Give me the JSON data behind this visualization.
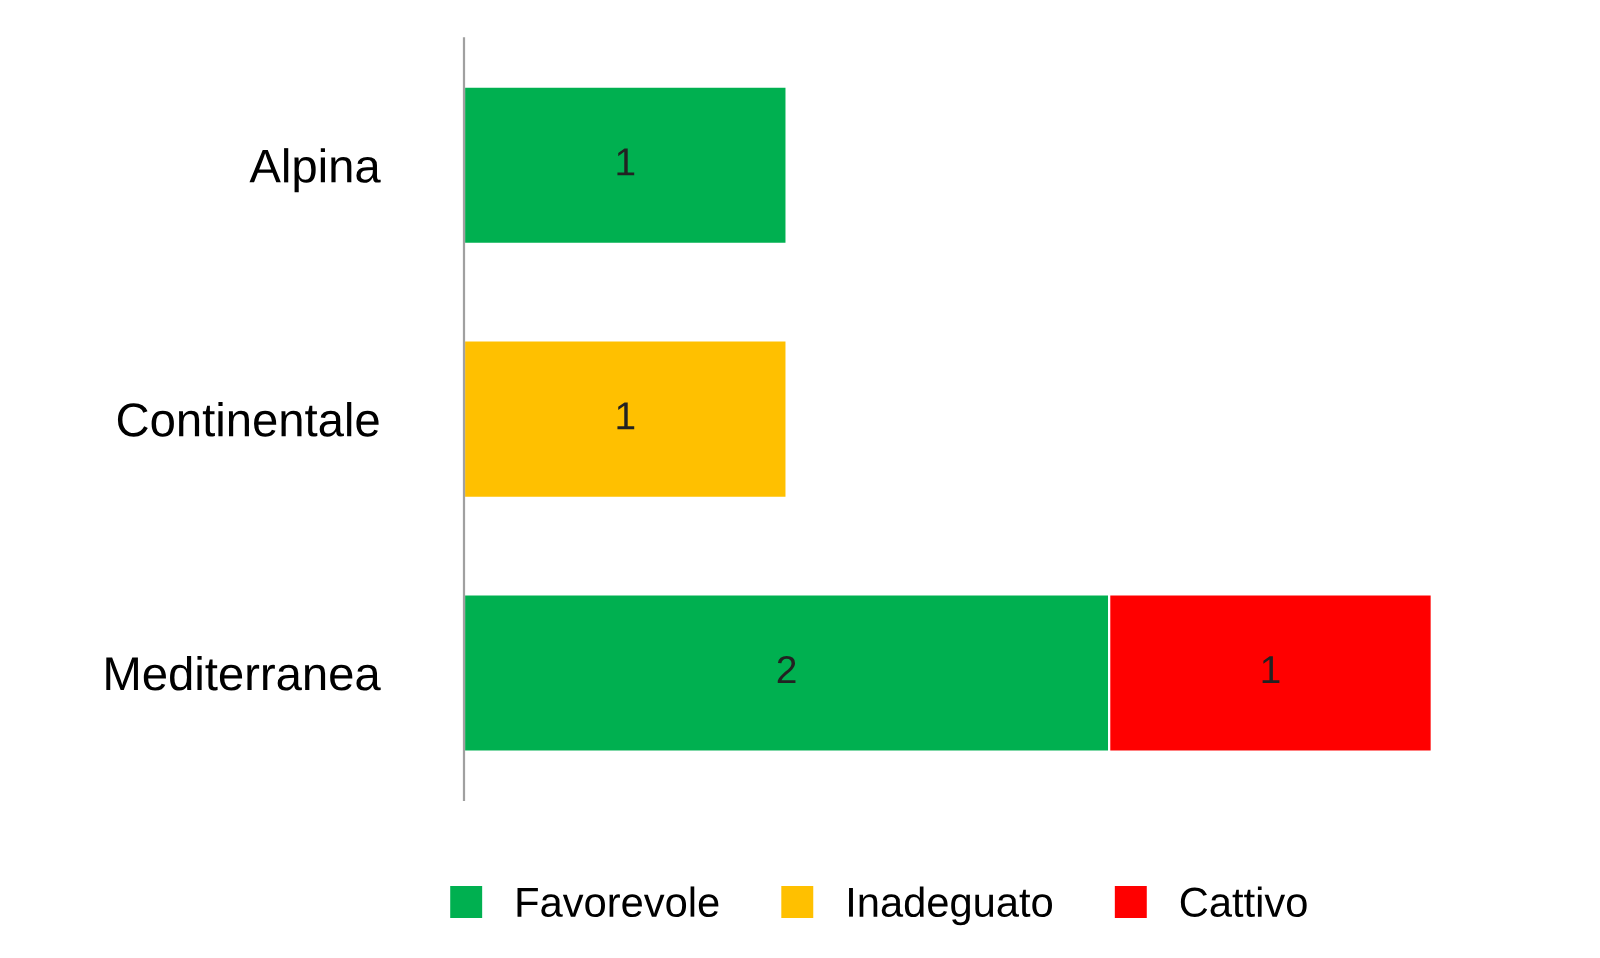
{
  "chart_data": {
    "type": "bar",
    "orientation": "horizontal",
    "stacked": true,
    "data_labels": true,
    "legend": "bottom",
    "grid": false,
    "categories": [
      "Alpina",
      "Continentale",
      "Mediterranea"
    ],
    "series": [
      {
        "name": "Favorevole",
        "color": "#00b050",
        "values": [
          1,
          null,
          2
        ]
      },
      {
        "name": "Inadeguato",
        "color": "#ffc000",
        "values": [
          null,
          1,
          null
        ]
      },
      {
        "name": "Cattivo",
        "color": "#ff0000",
        "values": [
          null,
          null,
          1
        ]
      }
    ]
  }
}
